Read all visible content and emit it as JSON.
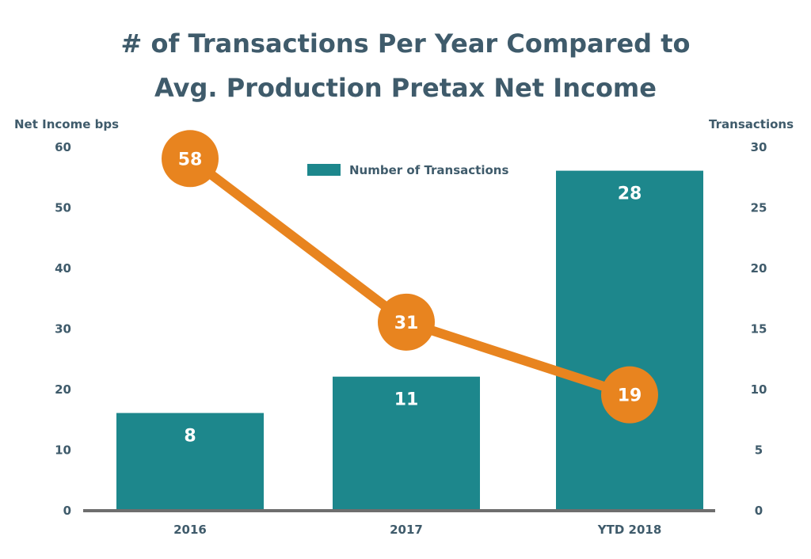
{
  "chart_data": {
    "type": "bar",
    "title_lines": [
      "# of Transactions Per Year Compared to",
      "Avg. Production Pretax Net Income"
    ],
    "ylabel_left": "Net Income bps",
    "ylabel_right": "Transactions",
    "categories": [
      "2016",
      "2017",
      "YTD 2018"
    ],
    "left_axis": {
      "min": 0,
      "max": 60,
      "ticks": [
        0,
        10,
        20,
        30,
        40,
        50,
        60
      ]
    },
    "right_axis": {
      "min": 0,
      "max": 30,
      "ticks": [
        0,
        5,
        10,
        15,
        20,
        25,
        30
      ]
    },
    "series": [
      {
        "name": "Number of Transactions",
        "type": "bar",
        "axis": "right",
        "values": [
          8,
          11,
          28
        ],
        "labels": [
          "8",
          "11",
          "28"
        ]
      },
      {
        "name": "",
        "type": "line",
        "axis": "left",
        "values": [
          58,
          31,
          19
        ],
        "labels": [
          "58",
          "31",
          "19"
        ]
      }
    ],
    "legend": {
      "placement": "top-center",
      "entries": [
        "Number of Transactions"
      ]
    },
    "grid": false,
    "colors": {
      "bar": "#1d878c",
      "line": "#e8841f",
      "text": "#3f5b6b",
      "baseline": "#6e6e6e"
    }
  }
}
